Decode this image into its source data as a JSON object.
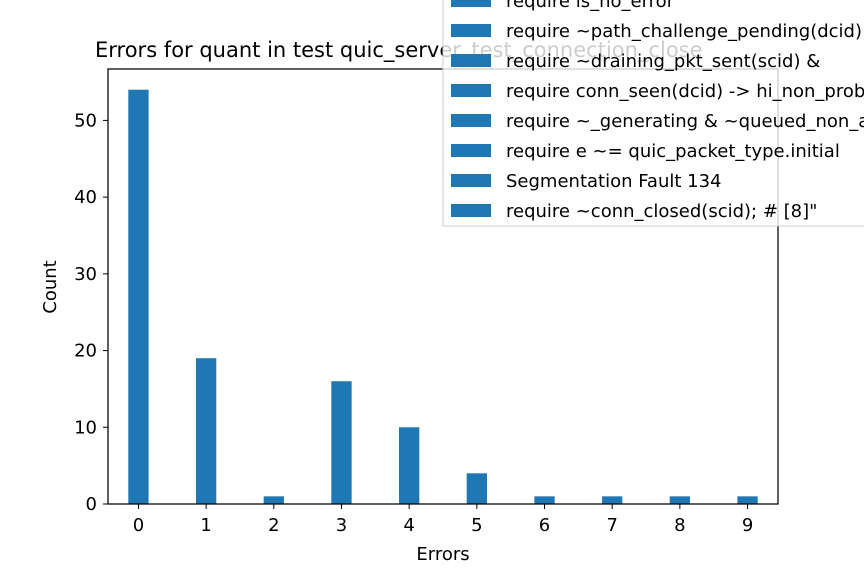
{
  "chart_data": {
    "type": "bar",
    "title": "Errors for quant in test quic_server_test_connection_close",
    "xlabel": "Errors",
    "ylabel": "Count",
    "x": [
      0,
      1,
      2,
      3,
      4,
      5,
      6,
      7,
      8,
      9
    ],
    "values": [
      54,
      19,
      1,
      16,
      10,
      4,
      1,
      1,
      1,
      1
    ],
    "xlim": [
      -0.45,
      9.45
    ],
    "ylim": [
      0,
      56.7
    ],
    "xticks": [
      "0",
      "1",
      "2",
      "3",
      "4",
      "5",
      "6",
      "7",
      "8",
      "9"
    ],
    "yticks": [
      "0",
      "10",
      "20",
      "30",
      "40",
      "50"
    ],
    "grid": false,
    "bar_color": "#1f77b4",
    "legend": {
      "placement": "top-right",
      "entries": [
        "require is_no_error",
        "require ~path_challenge_pending(dcid)",
        "require ~draining_pkt_sent(scid) & ",
        "require conn_seen(dcid) -> hi_non_probing",
        "require ~_generating & ~queued_non_ack",
        "require e ~= quic_packet_type.initial",
        "Segmentation Fault 134",
        "require ~conn_closed(scid);  # [8]\""
      ]
    }
  }
}
